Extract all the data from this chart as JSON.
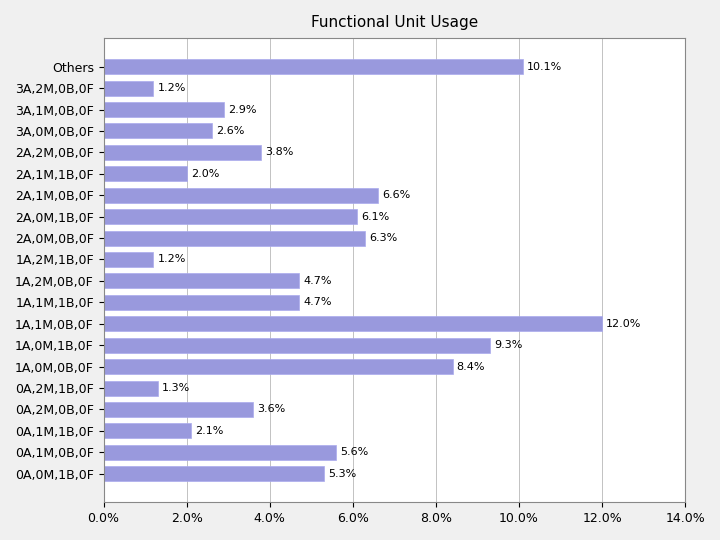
{
  "title": "Functional Unit Usage",
  "categories": [
    "0A,0M,1B,0F",
    "0A,1M,0B,0F",
    "0A,1M,1B,0F",
    "0A,2M,0B,0F",
    "0A,2M,1B,0F",
    "1A,0M,0B,0F",
    "1A,0M,1B,0F",
    "1A,1M,0B,0F",
    "1A,1M,1B,0F",
    "1A,2M,0B,0F",
    "1A,2M,1B,0F",
    "2A,0M,0B,0F",
    "2A,0M,1B,0F",
    "2A,1M,0B,0F",
    "2A,1M,1B,0F",
    "2A,2M,0B,0F",
    "3A,0M,0B,0F",
    "3A,1M,0B,0F",
    "3A,2M,0B,0F",
    "Others"
  ],
  "values": [
    5.3,
    5.6,
    2.1,
    3.6,
    1.3,
    8.4,
    9.3,
    12.0,
    4.7,
    4.7,
    1.2,
    6.3,
    6.1,
    6.6,
    2.0,
    3.8,
    2.6,
    2.9,
    1.2,
    10.1
  ],
  "bar_color": "#9999dd",
  "bar_edgecolor": "#aaaaee",
  "xlim": [
    0,
    14.0
  ],
  "xticks": [
    0.0,
    2.0,
    4.0,
    6.0,
    8.0,
    10.0,
    12.0,
    14.0
  ],
  "xlabel": "",
  "ylabel": "",
  "title_fontsize": 11,
  "tick_fontsize": 9,
  "label_fontsize": 9,
  "fig_bg": "#f0f0f0",
  "plot_bg": "#ffffff"
}
